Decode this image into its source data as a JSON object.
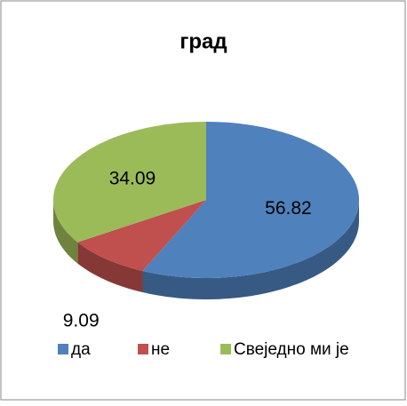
{
  "chart_data": {
    "type": "pie",
    "title": "град",
    "categories": [
      "да",
      "не",
      "Свеједно ми је"
    ],
    "values": [
      56.82,
      9.09,
      34.09
    ],
    "colors": [
      "#4f81bd",
      "#c0504d",
      "#9bbb59"
    ],
    "legend": "bottom"
  }
}
